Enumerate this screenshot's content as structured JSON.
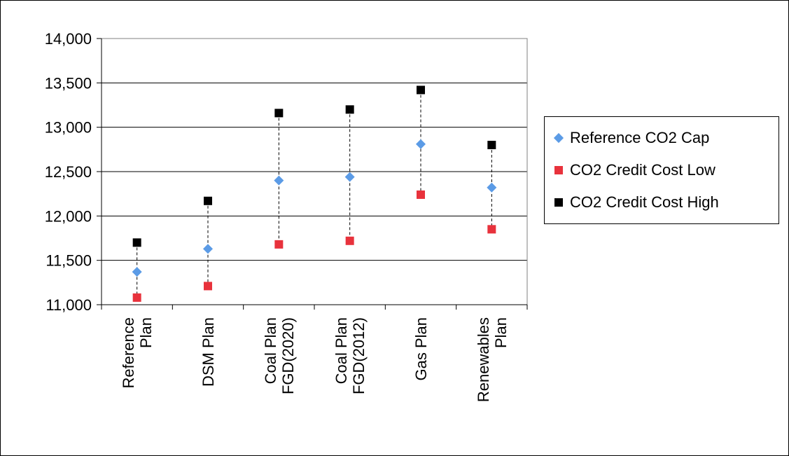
{
  "chart_data": {
    "type": "scatter",
    "title": "",
    "xlabel": "",
    "ylabel": "",
    "categories": [
      "Reference Plan",
      "DSM Plan",
      "Coal Plan FGD(2020)",
      "Coal Plan FGD(2012)",
      "Gas Plan",
      "Renewables Plan"
    ],
    "category_label_lines": [
      [
        "Reference",
        "Plan"
      ],
      [
        "DSM Plan"
      ],
      [
        "Coal Plan",
        "FGD(2020)"
      ],
      [
        "Coal Plan",
        "FGD(2012)"
      ],
      [
        "Gas Plan"
      ],
      [
        "Renewables",
        "Plan"
      ]
    ],
    "ylim": [
      11000,
      14000
    ],
    "yticks": [
      11000,
      11500,
      12000,
      12500,
      13000,
      13500,
      14000
    ],
    "ytick_labels": [
      "11,000",
      "11,500",
      "12,000",
      "12,500",
      "13,000",
      "13,500",
      "14,000"
    ],
    "grid": true,
    "legend_position": "right",
    "range_lines": "dashed vertical line from low to high marker",
    "series": [
      {
        "name": "Reference CO2 Cap",
        "marker": "diamond",
        "color": "#5B9BE6",
        "values": [
          11370,
          11630,
          12400,
          12440,
          12810,
          12320
        ]
      },
      {
        "name": "CO2 Credit Cost Low",
        "marker": "square",
        "color": "#E8323C",
        "values": [
          11080,
          11210,
          11680,
          11720,
          12240,
          11850
        ]
      },
      {
        "name": "CO2 Credit Cost High",
        "marker": "square",
        "color": "#000000",
        "values": [
          11700,
          12170,
          13160,
          13200,
          13420,
          12800
        ]
      }
    ]
  }
}
